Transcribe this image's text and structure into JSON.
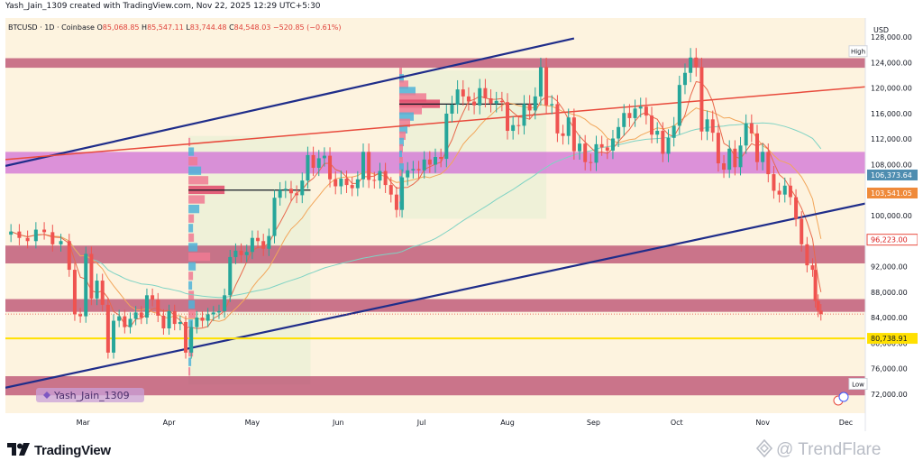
{
  "header": {
    "text": "Yash_Jain_1309 created with TradingView.com, Nov 22, 2025 12:29 UTC+5:30"
  },
  "legend": {
    "symbol": "BTCUSD · 1D · Coinbase",
    "open_label": "O",
    "open": "85,068.85",
    "high_label": "H",
    "high": "85,547.11",
    "low_label": "L",
    "low": "83,744.48",
    "close_label": "C",
    "close": "84,548.03",
    "change": "−520.85 (−0.61%)"
  },
  "footer": {
    "brand": "TradingView",
    "watermark": "@ TrendFlare"
  },
  "colors": {
    "up": "#26a69a",
    "down": "#ef5350",
    "zone": "#b5426a",
    "mag_zone": "#cf6bd7",
    "channel": "#1f2d8a",
    "yellow": "#ffe000",
    "ema_red": "#e84a3c"
  },
  "chart_data": {
    "type": "candlestick",
    "symbol": "BTCUSD",
    "interval": "1D",
    "exchange": "Coinbase",
    "currency": "USD",
    "ylim": [
      69000,
      131000
    ],
    "y_ticks": [
      "128,000.00",
      "124,000.00",
      "120,000.00",
      "116,000.00",
      "112,000.00",
      "108,000.00",
      "100,000.00",
      "96,000.00",
      "92,000.00",
      "88,000.00",
      "84,000.00",
      "80,000.00",
      "76,000.00",
      "72,000.00"
    ],
    "x_ticks": [
      {
        "label": "Mar",
        "date": "2025-03-01"
      },
      {
        "label": "Apr",
        "date": "2025-04-01"
      },
      {
        "label": "May",
        "date": "2025-05-01"
      },
      {
        "label": "Jun",
        "date": "2025-06-01"
      },
      {
        "label": "Jul",
        "date": "2025-07-01"
      },
      {
        "label": "Aug",
        "date": "2025-08-01"
      },
      {
        "label": "Sep",
        "date": "2025-09-01"
      },
      {
        "label": "Oct",
        "date": "2025-10-01"
      },
      {
        "label": "Nov",
        "date": "2025-11-01"
      },
      {
        "label": "Dec",
        "date": "2025-12-01"
      }
    ],
    "x_range": [
      "2025-02-01",
      "2025-12-08"
    ],
    "price_labels": [
      {
        "text": "High",
        "value": 125800,
        "kind": "plain"
      },
      {
        "text": "106,373.64",
        "value": 106373.64,
        "kind": "ma",
        "color": "#4e8db0"
      },
      {
        "text": "103,541.05",
        "value": 103541.05,
        "kind": "ema",
        "color": "#ef8a3a"
      },
      {
        "text": "96,223.00",
        "value": 96223.0,
        "kind": "ema-red",
        "color": "#e84a3c"
      },
      {
        "text": "80,738.91",
        "value": 80738.91,
        "kind": "yellow",
        "color": "#ffe000"
      },
      {
        "text": "Low",
        "value": 73600,
        "kind": "plain"
      }
    ],
    "horizontal_zones": [
      {
        "low": 123200,
        "high": 124700,
        "color": "#b5426a"
      },
      {
        "low": 106600,
        "high": 110000,
        "color": "#cf6bd7"
      },
      {
        "low": 92500,
        "high": 95300,
        "color": "#b5426a"
      },
      {
        "low": 84900,
        "high": 86900,
        "color": "#b5426a"
      },
      {
        "low": 71800,
        "high": 74800,
        "color": "#b5426a"
      }
    ],
    "yellow_line": 80738.91,
    "current_price": 84548.03,
    "trend_lines": [
      {
        "from": [
          "2025-02-01",
          107800
        ],
        "to": [
          "2025-08-25",
          127800
        ],
        "color": "#1f2d8a"
      },
      {
        "from": [
          "2025-02-01",
          73000
        ],
        "to": [
          "2025-12-08",
          101900
        ],
        "color": "#1f2d8a"
      },
      {
        "from": [
          "2025-02-01",
          108800
        ],
        "to": [
          "2025-12-08",
          120200
        ],
        "color": "#e84a3c"
      }
    ],
    "shaded_ranges": [
      {
        "start": "2025-04-08",
        "end": "2025-05-22",
        "low": 73500,
        "high": 112500
      },
      {
        "start": "2025-06-23",
        "end": "2025-08-15",
        "low": 99500,
        "high": 122800
      }
    ],
    "volume_profile": [
      {
        "start": "2025-04-08",
        "levels": [
          [
            111500,
            2
          ],
          [
            110000,
            6
          ],
          [
            108500,
            10
          ],
          [
            107000,
            14
          ],
          [
            105500,
            22
          ],
          [
            104000,
            40
          ],
          [
            102500,
            18
          ],
          [
            101000,
            12
          ],
          [
            99500,
            6
          ],
          [
            98000,
            5
          ],
          [
            96500,
            6
          ],
          [
            95000,
            10
          ],
          [
            93500,
            24
          ],
          [
            92000,
            8
          ],
          [
            90500,
            5
          ],
          [
            89000,
            4
          ],
          [
            87500,
            6
          ],
          [
            86000,
            7
          ],
          [
            84500,
            8
          ],
          [
            83000,
            5
          ],
          [
            81500,
            4
          ],
          [
            80000,
            3
          ],
          [
            78500,
            5
          ],
          [
            77000,
            3
          ],
          [
            75500,
            2
          ]
        ],
        "poc": 104000
      },
      {
        "start": "2025-06-23",
        "levels": [
          [
            122500,
            3
          ],
          [
            121500,
            5
          ],
          [
            120500,
            10
          ],
          [
            119500,
            18
          ],
          [
            118500,
            30
          ],
          [
            117500,
            45
          ],
          [
            116500,
            25
          ],
          [
            115500,
            16
          ],
          [
            114500,
            12
          ],
          [
            113500,
            9
          ],
          [
            112500,
            7
          ],
          [
            111500,
            5
          ],
          [
            110500,
            4
          ],
          [
            109500,
            3
          ],
          [
            108500,
            4
          ],
          [
            107500,
            5
          ],
          [
            106500,
            3
          ],
          [
            105500,
            3
          ],
          [
            104500,
            4
          ],
          [
            103500,
            2
          ],
          [
            102500,
            2
          ],
          [
            101500,
            2
          ],
          [
            100500,
            1
          ]
        ],
        "poc": 117500
      }
    ],
    "poc_lines": [
      {
        "from": "2025-04-08",
        "to": "2025-05-22",
        "value": 104000
      },
      {
        "from": "2025-06-23",
        "to": "2025-08-12",
        "value": 117500
      }
    ],
    "close_series": [
      [
        "2025-02-03",
        97500
      ],
      [
        "2025-02-06",
        96500
      ],
      [
        "2025-02-09",
        96000
      ],
      [
        "2025-02-12",
        97800
      ],
      [
        "2025-02-15",
        97400
      ],
      [
        "2025-02-18",
        95500
      ],
      [
        "2025-02-21",
        96000
      ],
      [
        "2025-02-24",
        91500
      ],
      [
        "2025-02-26",
        84500
      ],
      [
        "2025-02-28",
        84200
      ],
      [
        "2025-03-02",
        94000
      ],
      [
        "2025-03-04",
        87000
      ],
      [
        "2025-03-06",
        89800
      ],
      [
        "2025-03-08",
        86000
      ],
      [
        "2025-03-10",
        78500
      ],
      [
        "2025-03-12",
        83500
      ],
      [
        "2025-03-14",
        84200
      ],
      [
        "2025-03-16",
        82500
      ],
      [
        "2025-03-18",
        83800
      ],
      [
        "2025-03-20",
        84800
      ],
      [
        "2025-03-22",
        84000
      ],
      [
        "2025-03-24",
        87500
      ],
      [
        "2025-03-26",
        86800
      ],
      [
        "2025-03-28",
        84300
      ],
      [
        "2025-03-30",
        82300
      ],
      [
        "2025-04-01",
        85000
      ],
      [
        "2025-04-03",
        83000
      ],
      [
        "2025-04-05",
        83300
      ],
      [
        "2025-04-07",
        78500
      ],
      [
        "2025-04-09",
        82500
      ],
      [
        "2025-04-11",
        84000
      ],
      [
        "2025-04-13",
        83500
      ],
      [
        "2025-04-15",
        84500
      ],
      [
        "2025-04-17",
        84800
      ],
      [
        "2025-04-19",
        85000
      ],
      [
        "2025-04-21",
        87500
      ],
      [
        "2025-04-23",
        93500
      ],
      [
        "2025-04-25",
        94500
      ],
      [
        "2025-04-27",
        93800
      ],
      [
        "2025-04-29",
        94300
      ],
      [
        "2025-05-01",
        96500
      ],
      [
        "2025-05-03",
        96000
      ],
      [
        "2025-05-05",
        94800
      ],
      [
        "2025-05-07",
        96800
      ],
      [
        "2025-05-09",
        102800
      ],
      [
        "2025-05-11",
        104000
      ],
      [
        "2025-05-13",
        104200
      ],
      [
        "2025-05-15",
        103500
      ],
      [
        "2025-05-17",
        103200
      ],
      [
        "2025-05-19",
        105500
      ],
      [
        "2025-05-21",
        109500
      ],
      [
        "2025-05-23",
        107500
      ],
      [
        "2025-05-25",
        109000
      ],
      [
        "2025-05-27",
        109400
      ],
      [
        "2025-05-29",
        105700
      ],
      [
        "2025-05-31",
        104600
      ],
      [
        "2025-06-02",
        105800
      ],
      [
        "2025-06-04",
        104800
      ],
      [
        "2025-06-06",
        104300
      ],
      [
        "2025-06-08",
        105700
      ],
      [
        "2025-06-10",
        110000
      ],
      [
        "2025-06-12",
        105600
      ],
      [
        "2025-06-14",
        105500
      ],
      [
        "2025-06-16",
        107000
      ],
      [
        "2025-06-18",
        104800
      ],
      [
        "2025-06-20",
        103300
      ],
      [
        "2025-06-22",
        100900
      ],
      [
        "2025-06-24",
        106000
      ],
      [
        "2025-06-26",
        107100
      ],
      [
        "2025-06-28",
        107300
      ],
      [
        "2025-06-30",
        107100
      ],
      [
        "2025-07-02",
        108800
      ],
      [
        "2025-07-04",
        108000
      ],
      [
        "2025-07-06",
        109200
      ],
      [
        "2025-07-08",
        108900
      ],
      [
        "2025-07-10",
        116000
      ],
      [
        "2025-07-12",
        117400
      ],
      [
        "2025-07-14",
        119800
      ],
      [
        "2025-07-16",
        118700
      ],
      [
        "2025-07-18",
        117900
      ],
      [
        "2025-07-20",
        117300
      ],
      [
        "2025-07-22",
        120000
      ],
      [
        "2025-07-24",
        118400
      ],
      [
        "2025-07-26",
        117600
      ],
      [
        "2025-07-28",
        118000
      ],
      [
        "2025-07-30",
        117800
      ],
      [
        "2025-08-01",
        113300
      ],
      [
        "2025-08-03",
        114200
      ],
      [
        "2025-08-05",
        114100
      ],
      [
        "2025-08-07",
        117500
      ],
      [
        "2025-08-09",
        116500
      ],
      [
        "2025-08-11",
        118700
      ],
      [
        "2025-08-13",
        123300
      ],
      [
        "2025-08-15",
        117300
      ],
      [
        "2025-08-17",
        117500
      ],
      [
        "2025-08-19",
        112900
      ],
      [
        "2025-08-21",
        112500
      ],
      [
        "2025-08-23",
        115400
      ],
      [
        "2025-08-25",
        110100
      ],
      [
        "2025-08-27",
        111300
      ],
      [
        "2025-08-29",
        108400
      ],
      [
        "2025-08-31",
        108300
      ],
      [
        "2025-09-02",
        111200
      ],
      [
        "2025-09-04",
        110700
      ],
      [
        "2025-09-06",
        110200
      ],
      [
        "2025-09-08",
        112100
      ],
      [
        "2025-09-10",
        113900
      ],
      [
        "2025-09-12",
        116100
      ],
      [
        "2025-09-14",
        115300
      ],
      [
        "2025-09-16",
        116800
      ],
      [
        "2025-09-18",
        117100
      ],
      [
        "2025-09-20",
        115700
      ],
      [
        "2025-09-22",
        112700
      ],
      [
        "2025-09-24",
        113300
      ],
      [
        "2025-09-26",
        109700
      ],
      [
        "2025-09-28",
        112200
      ],
      [
        "2025-09-30",
        114100
      ],
      [
        "2025-10-02",
        120500
      ],
      [
        "2025-10-04",
        122400
      ],
      [
        "2025-10-06",
        124800
      ],
      [
        "2025-10-08",
        123300
      ],
      [
        "2025-10-10",
        113200
      ],
      [
        "2025-10-12",
        115100
      ],
      [
        "2025-10-14",
        113000
      ],
      [
        "2025-10-16",
        108200
      ],
      [
        "2025-10-18",
        107200
      ],
      [
        "2025-10-20",
        110500
      ],
      [
        "2025-10-22",
        107600
      ],
      [
        "2025-10-24",
        111000
      ],
      [
        "2025-10-26",
        114500
      ],
      [
        "2025-10-28",
        112900
      ],
      [
        "2025-10-30",
        108400
      ],
      [
        "2025-11-01",
        110000
      ],
      [
        "2025-11-03",
        106500
      ],
      [
        "2025-11-05",
        103900
      ],
      [
        "2025-11-07",
        103300
      ],
      [
        "2025-11-09",
        104700
      ],
      [
        "2025-11-11",
        102900
      ],
      [
        "2025-11-13",
        99500
      ],
      [
        "2025-11-15",
        95500
      ],
      [
        "2025-11-17",
        92200
      ],
      [
        "2025-11-19",
        91500
      ],
      [
        "2025-11-20",
        86600
      ],
      [
        "2025-11-21",
        85100
      ],
      [
        "2025-11-22",
        84548.03
      ]
    ]
  }
}
